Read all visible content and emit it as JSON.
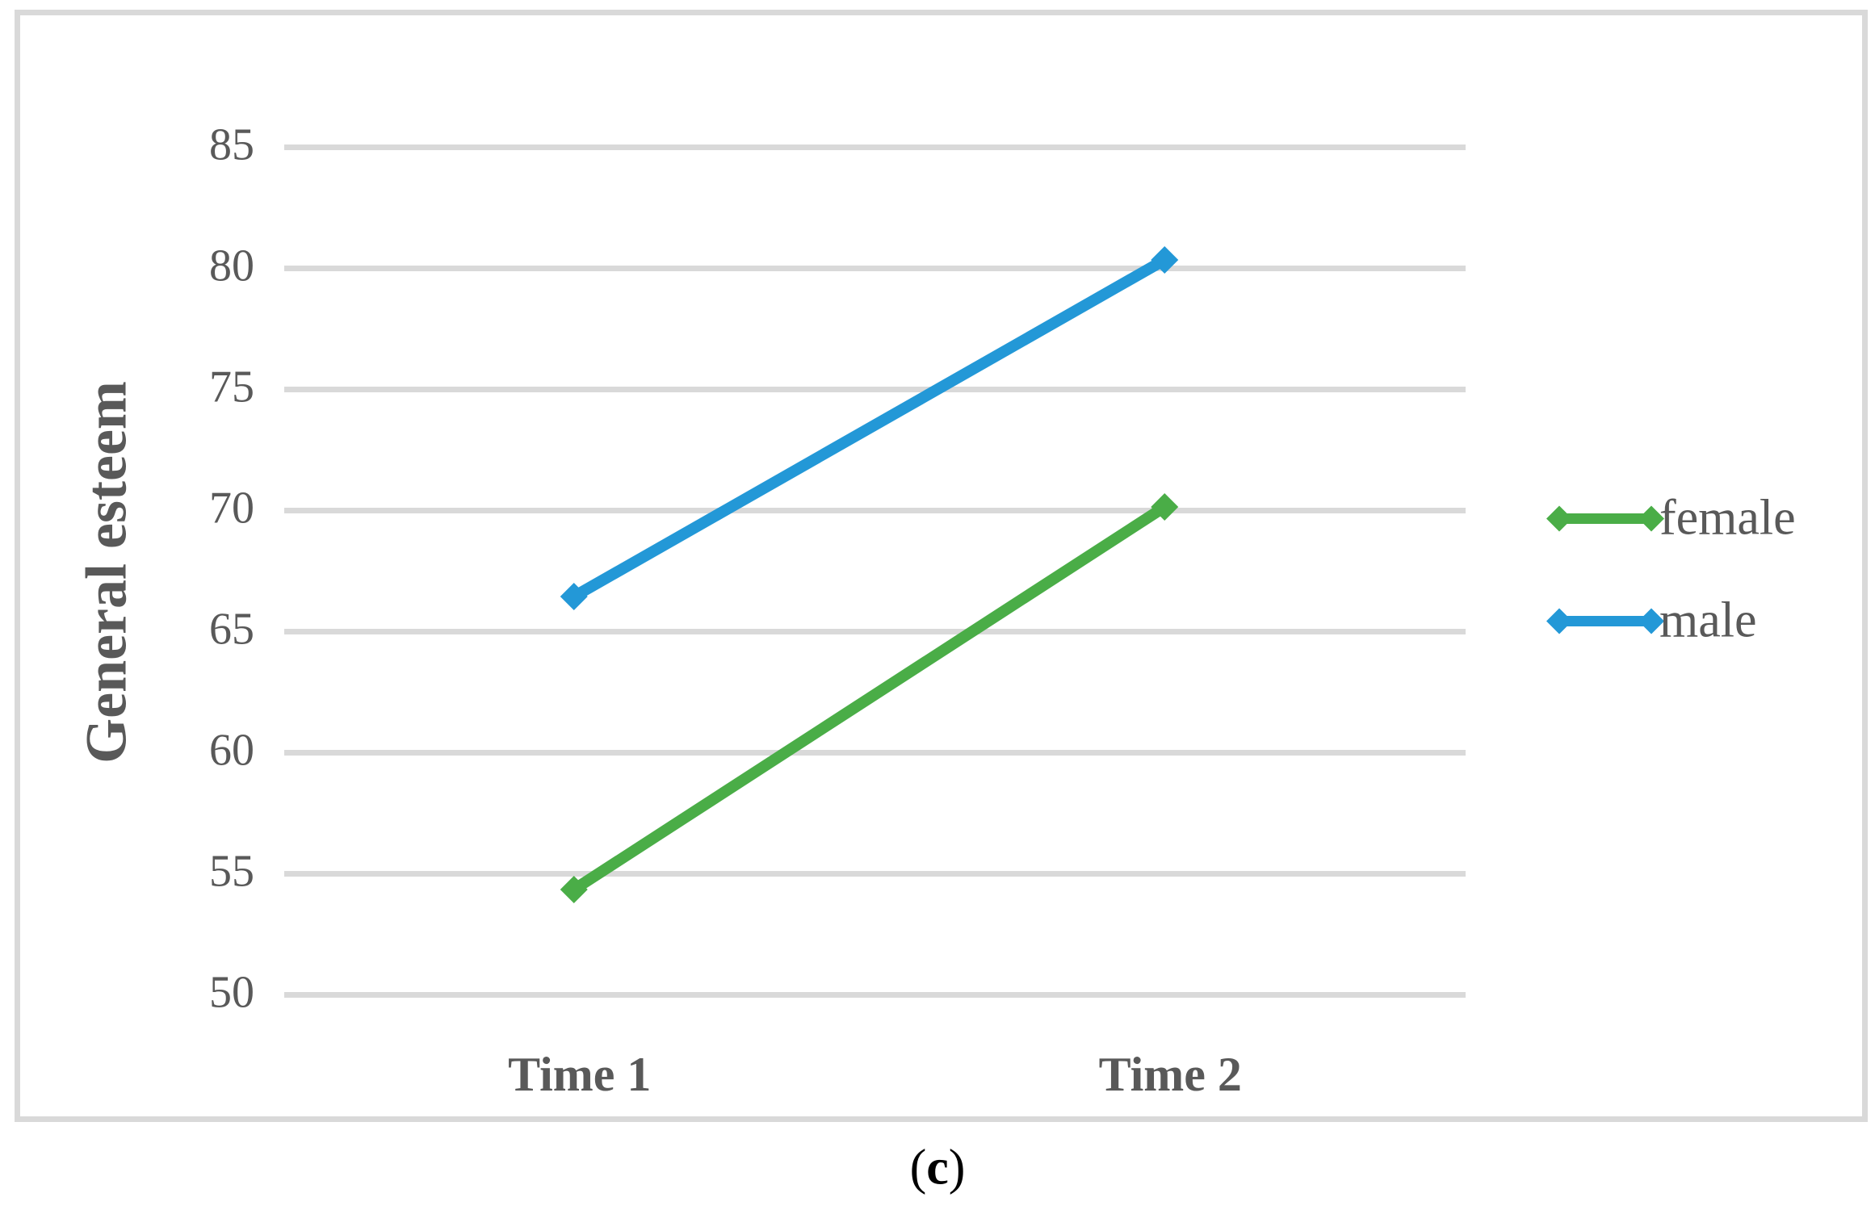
{
  "caption": {
    "open": "(",
    "letter": "c",
    "close": ")"
  },
  "colors": {
    "female": "#4AAD47",
    "male": "#2398D7",
    "grid": "#D9D9D9",
    "frame_border": "#D9D9D9",
    "text": "#595959",
    "caption_text": "#000000"
  },
  "chart_data": {
    "type": "line",
    "categories": [
      "Time 1",
      "Time 2"
    ],
    "series": [
      {
        "name": "female",
        "values": [
          54.1,
          69.9
        ],
        "color_key": "female"
      },
      {
        "name": "male",
        "values": [
          66.2,
          80.1
        ],
        "color_key": "male"
      }
    ],
    "title": "",
    "xlabel": "",
    "ylabel": "General esteem",
    "ylim": [
      50,
      85
    ],
    "yticks": [
      50,
      55,
      60,
      65,
      70,
      75,
      80,
      85
    ],
    "grid": "horizontal",
    "legend_position": "right",
    "legend_order": [
      "female",
      "male"
    ],
    "marker": "diamond"
  }
}
